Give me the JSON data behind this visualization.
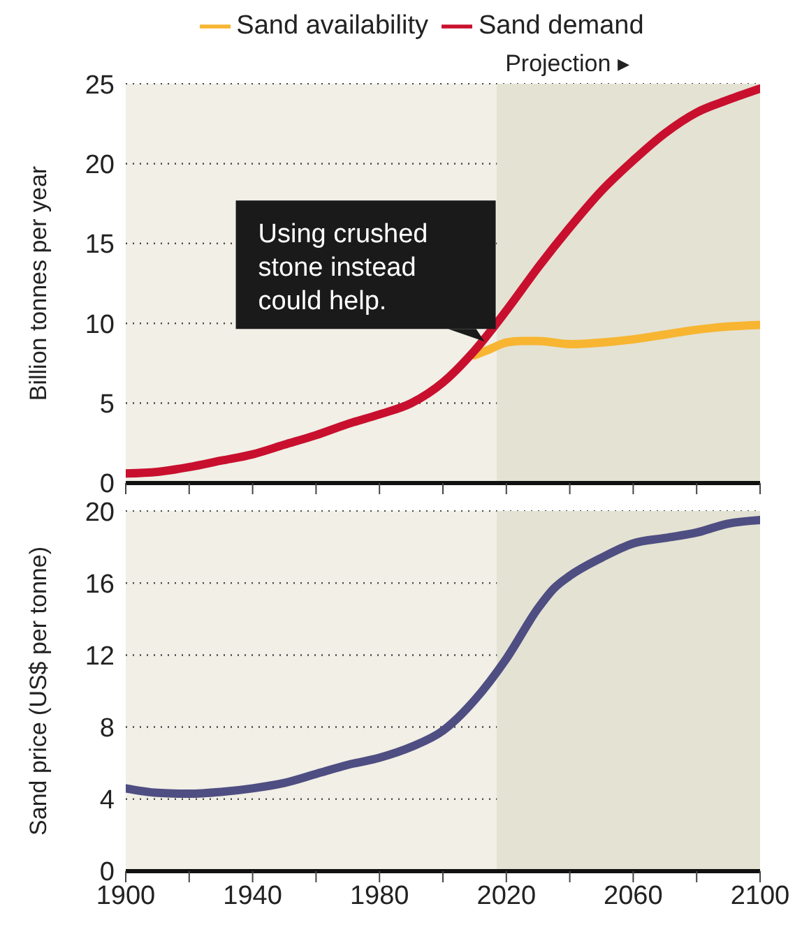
{
  "chart_data": [
    {
      "type": "line",
      "legend": "top",
      "grid": "y",
      "ylabel": "Billion tonnes per year",
      "xlim": [
        1900,
        2100
      ],
      "ylim": [
        0,
        25
      ],
      "yticks": [
        0,
        5,
        10,
        15,
        20,
        25
      ],
      "xticks": [
        {
          "value": 1900,
          "label": null
        },
        {
          "value": 1920,
          "label": null
        },
        {
          "value": 1940,
          "label": null
        },
        {
          "value": 1960,
          "label": null
        },
        {
          "value": 1980,
          "label": null
        },
        {
          "value": 2000,
          "label": null
        },
        {
          "value": 2020,
          "label": null
        },
        {
          "value": 2040,
          "label": null
        },
        {
          "value": 2060,
          "label": null
        },
        {
          "value": 2080,
          "label": null
        },
        {
          "value": 2100,
          "label": null
        }
      ],
      "tick_labels": "y",
      "bands": [
        {
          "axis": "x",
          "from": 2017,
          "to": 2100,
          "label": "Projection ▸",
          "color": "#e4e2d3"
        }
      ],
      "annotations": [
        {
          "text": "Using crushed stone instead could help.",
          "x": 2014,
          "y": 8.6
        }
      ],
      "series": [
        {
          "name": "Sand availability",
          "color": "#f7b531",
          "x": [
            2010,
            2015,
            2020,
            2025,
            2030,
            2040,
            2050,
            2060,
            2070,
            2080,
            2090,
            2100
          ],
          "values": [
            8.0,
            8.4,
            8.8,
            8.9,
            8.9,
            8.7,
            8.8,
            9.0,
            9.3,
            9.6,
            9.8,
            9.9
          ]
        },
        {
          "name": "Sand demand",
          "color": "#c8102e",
          "x": [
            1900,
            1910,
            1920,
            1930,
            1940,
            1950,
            1960,
            1970,
            1980,
            1990,
            2000,
            2010,
            2020,
            2030,
            2040,
            2050,
            2060,
            2070,
            2080,
            2090,
            2100
          ],
          "values": [
            0.6,
            0.7,
            1.0,
            1.4,
            1.8,
            2.4,
            3.0,
            3.7,
            4.3,
            5.0,
            6.3,
            8.3,
            10.8,
            13.5,
            16.0,
            18.3,
            20.2,
            21.9,
            23.2,
            24.0,
            24.7
          ]
        }
      ]
    },
    {
      "type": "line",
      "grid": "y",
      "ylabel": "Sand price (US$ per tonne)",
      "xlim": [
        1900,
        2100
      ],
      "ylim": [
        0,
        20
      ],
      "yticks": [
        0,
        4,
        8,
        12,
        16,
        20
      ],
      "xticks": [
        1900,
        {
          "value": 1920,
          "label": null
        },
        1940,
        {
          "value": 1960,
          "label": null
        },
        1980,
        {
          "value": 2000,
          "label": null
        },
        2020,
        {
          "value": 2040,
          "label": null
        },
        2060,
        {
          "value": 2080,
          "label": null
        },
        2100
      ],
      "bands": [
        {
          "axis": "x",
          "from": 2017,
          "to": 2100,
          "color": "#e4e2d3"
        }
      ],
      "series": [
        {
          "color": "#4f4e82",
          "x": [
            1900,
            1910,
            1920,
            1930,
            1940,
            1950,
            1960,
            1970,
            1980,
            1990,
            2000,
            2010,
            2020,
            2030,
            2035,
            2040,
            2050,
            2060,
            2070,
            2080,
            2090,
            2100
          ],
          "values": [
            4.6,
            4.35,
            4.3,
            4.4,
            4.6,
            4.9,
            5.4,
            5.9,
            6.3,
            6.9,
            7.8,
            9.5,
            11.8,
            14.6,
            15.7,
            16.4,
            17.4,
            18.2,
            18.5,
            18.8,
            19.3,
            19.5
          ]
        }
      ]
    }
  ]
}
